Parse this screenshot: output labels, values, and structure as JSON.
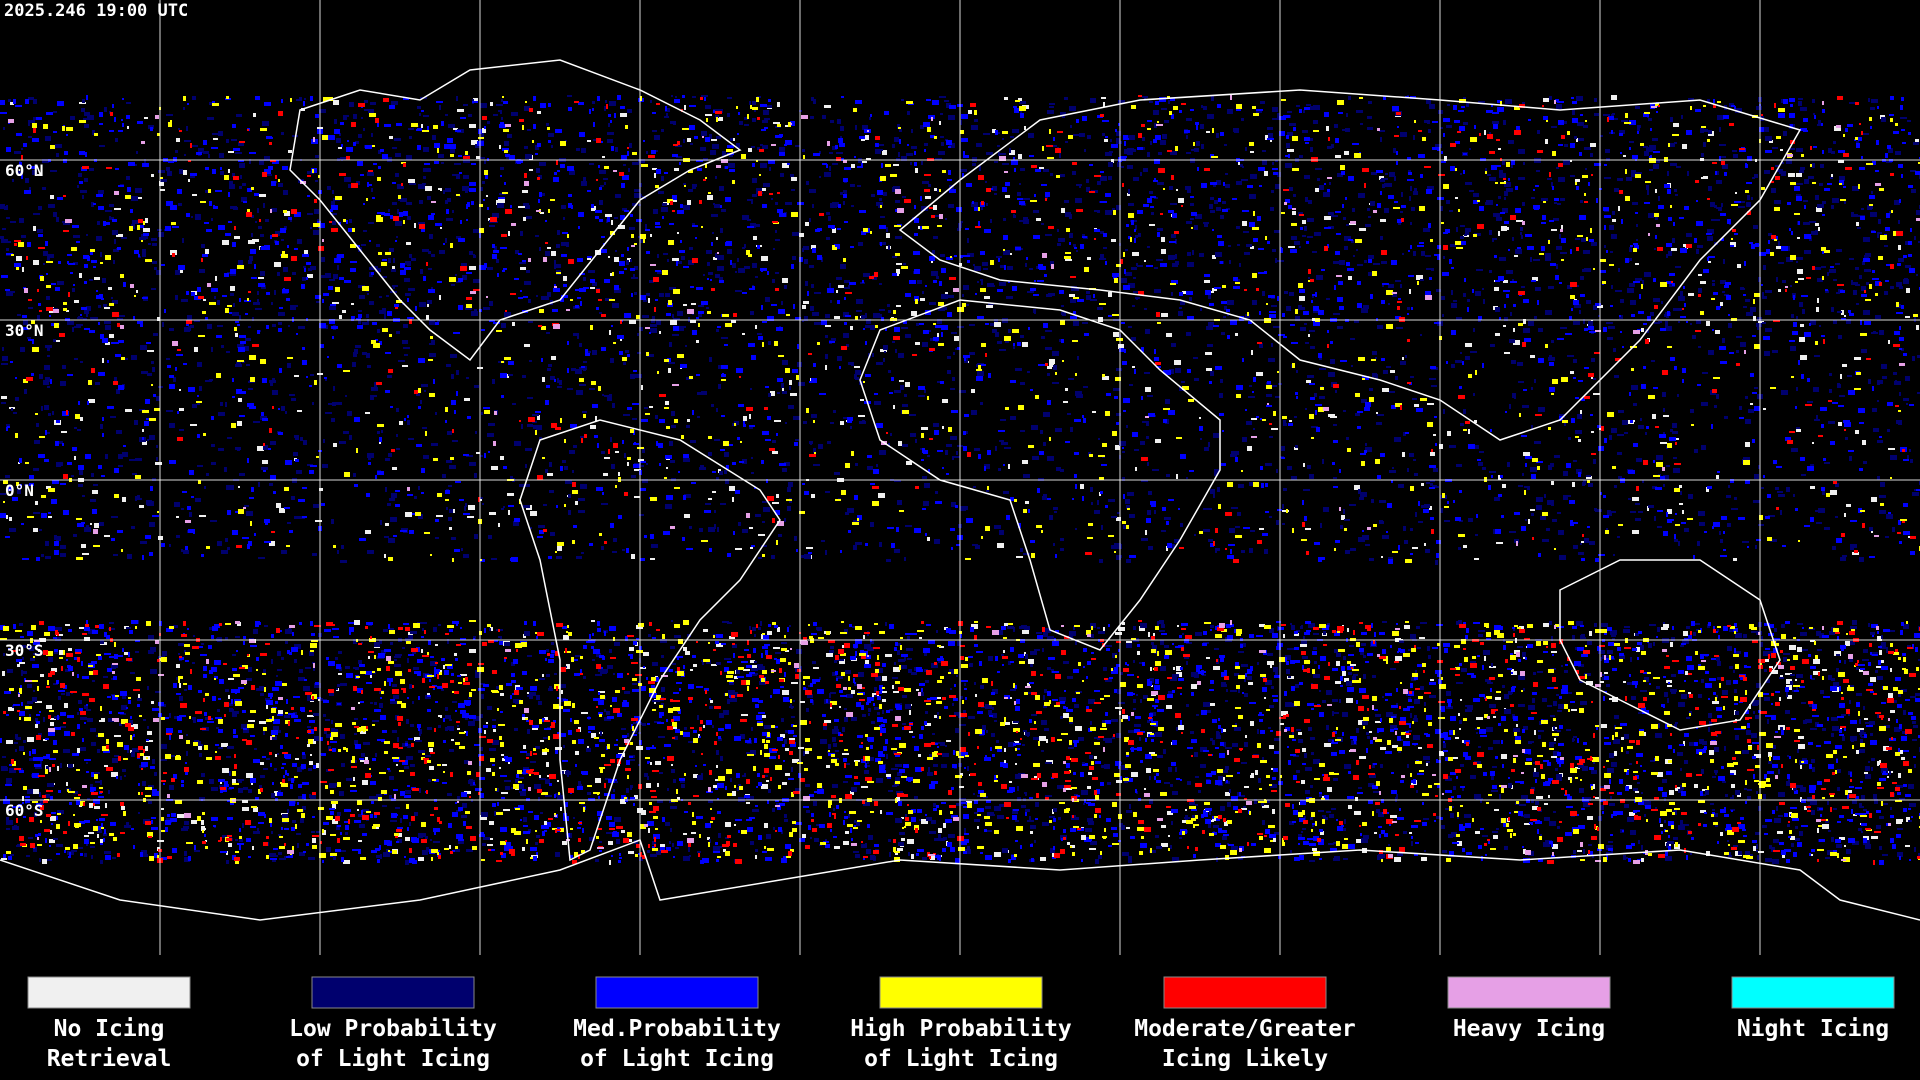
{
  "timestamp": "2025.246 19:00 UTC",
  "latitude_labels": [
    "60°N",
    "30°N",
    "0°N",
    "30°S",
    "60°S"
  ],
  "legend": [
    {
      "label_lines": [
        "No Icing",
        "Retrieval"
      ],
      "color": "#f0f0f0"
    },
    {
      "label_lines": [
        "Low Probability",
        "of Light Icing"
      ],
      "color": "#00006e"
    },
    {
      "label_lines": [
        "Med.Probability",
        "of Light Icing"
      ],
      "color": "#0000ff"
    },
    {
      "label_lines": [
        "High Probability",
        "of Light Icing"
      ],
      "color": "#ffff00"
    },
    {
      "label_lines": [
        "Moderate/Greater",
        "Icing Likely"
      ],
      "color": "#ff0000"
    },
    {
      "label_lines": [
        "Heavy Icing"
      ],
      "color": "#e6a0e6"
    },
    {
      "label_lines": [
        "Night Icing"
      ],
      "color": "#00ffff"
    }
  ]
}
